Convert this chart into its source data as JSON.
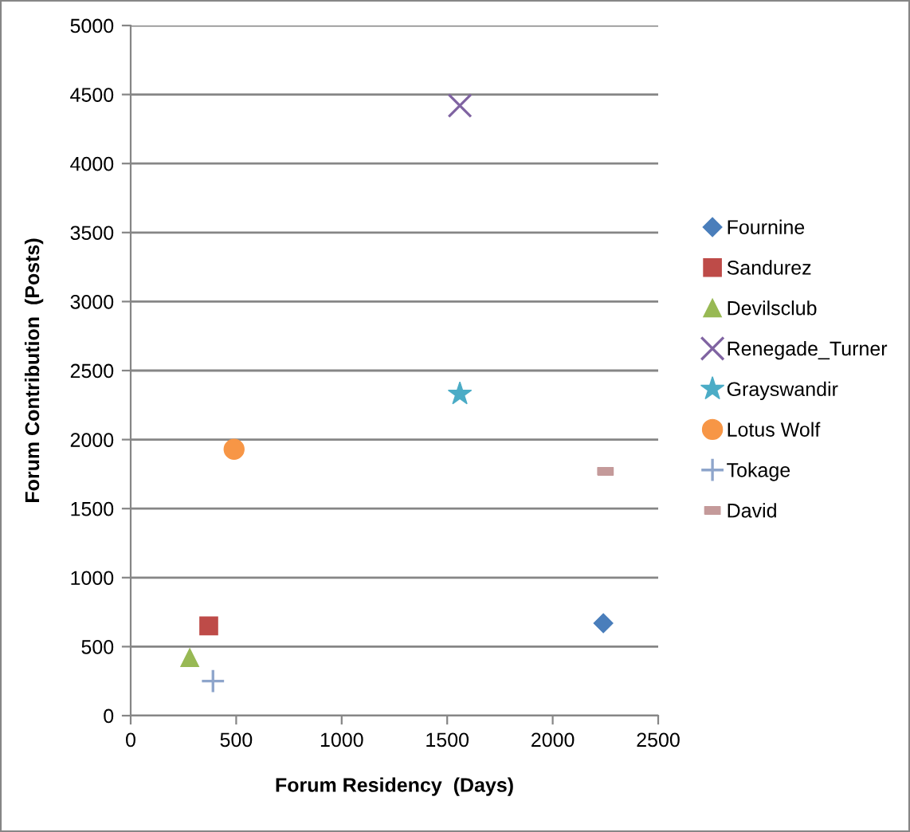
{
  "chart_data": {
    "type": "scatter",
    "xlabel": "Forum Residency  (Days)",
    "ylabel": "Forum Contribution  (Posts)",
    "xlim": [
      0,
      2500
    ],
    "xticks": [
      0,
      500,
      1000,
      1500,
      2000,
      2500
    ],
    "ylim": [
      0,
      5000
    ],
    "yticks": [
      0,
      500,
      1000,
      1500,
      2000,
      2500,
      3000,
      3500,
      4000,
      4500,
      5000
    ],
    "grid": "y",
    "legend": "right",
    "series": [
      {
        "name": "Fournine",
        "color": "#4a7ebb",
        "marker": "diamond",
        "x": [
          2240
        ],
        "values": [
          670
        ]
      },
      {
        "name": "Sandurez",
        "color": "#be4b48",
        "marker": "square",
        "x": [
          370
        ],
        "values": [
          650
        ]
      },
      {
        "name": "Devilsclub",
        "color": "#98b954",
        "marker": "triangle",
        "x": [
          280
        ],
        "values": [
          420
        ]
      },
      {
        "name": "Renegade_Turner",
        "color": "#8064a2",
        "marker": "x",
        "x": [
          1560
        ],
        "values": [
          4420
        ]
      },
      {
        "name": "Grayswandir",
        "color": "#4bacc6",
        "marker": "star",
        "x": [
          1560
        ],
        "values": [
          2330
        ]
      },
      {
        "name": "Lotus Wolf",
        "color": "#f79646",
        "marker": "circle",
        "x": [
          490
        ],
        "values": [
          1930
        ]
      },
      {
        "name": "Tokage",
        "color": "#8ea5cb",
        "marker": "cross",
        "x": [
          390
        ],
        "values": [
          250
        ]
      },
      {
        "name": "David",
        "color": "#c49a9a",
        "x": [
          2250
        ],
        "values": [
          1770
        ]
      }
    ]
  }
}
